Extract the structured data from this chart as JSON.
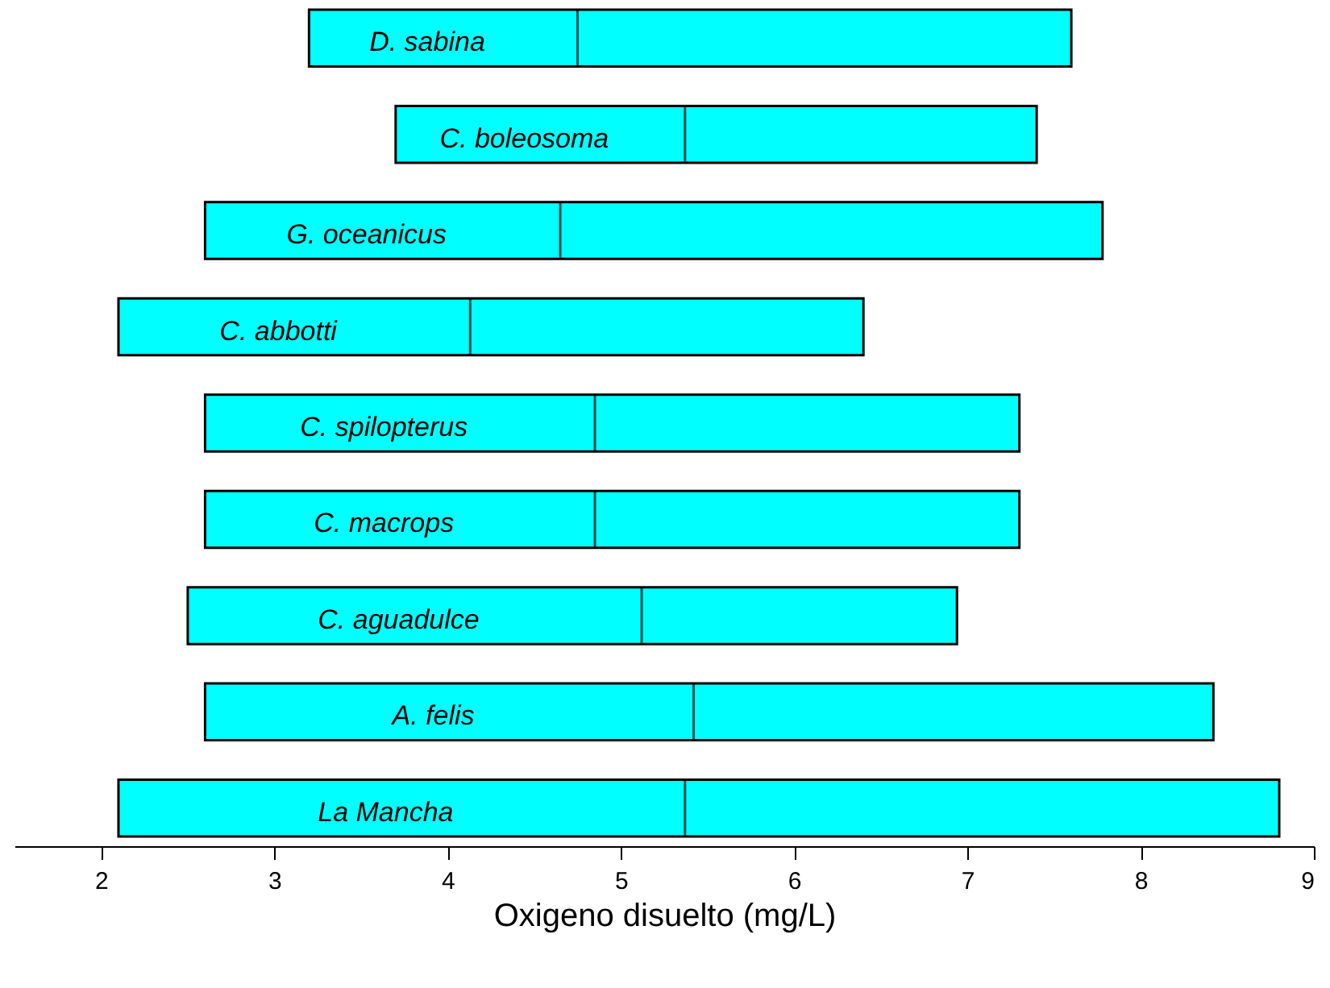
{
  "chart_data": {
    "type": "box",
    "orientation": "horizontal",
    "xlabel": "Oxigeno disuelto (mg/L)",
    "categories": [
      "D. sabina",
      "C. boleosoma",
      "G. oceanicus",
      "C. abbotti",
      "C. spilopterus",
      "C. macrops",
      "C. aguadulce",
      "A. felis",
      "La Mancha"
    ],
    "color": "#00ffff",
    "boxes": [
      {
        "low": 3.2,
        "q1": 3.2,
        "median": 4.75,
        "q3": 7.6,
        "high": 7.6
      },
      {
        "low": 3.7,
        "q1": 3.7,
        "median": 5.37,
        "q3": 7.4,
        "high": 7.4
      },
      {
        "low": 2.6,
        "q1": 2.6,
        "median": 4.65,
        "q3": 7.78,
        "high": 7.78
      },
      {
        "low": 2.1,
        "q1": 2.1,
        "median": 4.13,
        "q3": 6.4,
        "high": 6.4
      },
      {
        "low": 2.6,
        "q1": 2.6,
        "median": 4.85,
        "q3": 7.3,
        "high": 7.3
      },
      {
        "low": 2.6,
        "q1": 2.6,
        "median": 4.85,
        "q3": 7.3,
        "high": 7.3
      },
      {
        "low": 2.5,
        "q1": 2.5,
        "median": 5.12,
        "q3": 6.94,
        "high": 6.94
      },
      {
        "low": 2.6,
        "q1": 2.6,
        "median": 5.42,
        "q3": 8.42,
        "high": 8.42
      },
      {
        "low": 2.1,
        "q1": 2.1,
        "median": 5.37,
        "q3": 8.8,
        "high": 8.8
      }
    ],
    "xlim": [
      1.5,
      9
    ],
    "xticks": [
      2,
      3,
      4,
      5,
      6,
      7,
      8,
      9
    ]
  }
}
